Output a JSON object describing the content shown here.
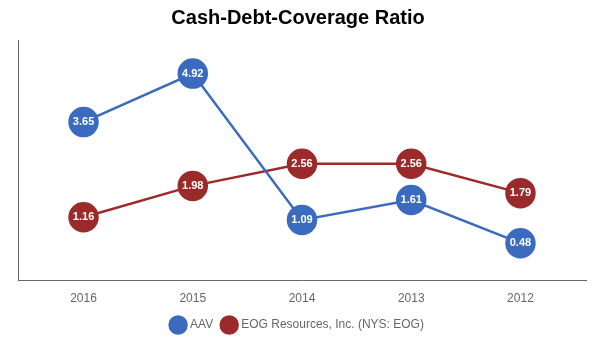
{
  "chart_data": {
    "type": "line",
    "title": "Cash-Debt-Coverage Ratio",
    "x": [
      2016,
      2015,
      2014,
      2013,
      2012
    ],
    "series": [
      {
        "name": "AAV",
        "color": "#3a6bbf",
        "values": [
          3.65,
          4.92,
          1.09,
          1.61,
          0.48
        ]
      },
      {
        "name": "EOG Resources, Inc. (NYS: EOG)",
        "color": "#9b2b2b",
        "values": [
          1.16,
          1.98,
          2.56,
          2.56,
          1.79
        ]
      }
    ],
    "xlim": [
      2016.6,
      2011.4
    ],
    "xticks": [
      2016,
      2015,
      2014,
      2013,
      2012
    ],
    "ylim": [
      -0.5,
      5.8
    ],
    "grid": false,
    "legend": "bottom",
    "data_labels": true,
    "tick_labels": "x",
    "marker": "circle"
  }
}
